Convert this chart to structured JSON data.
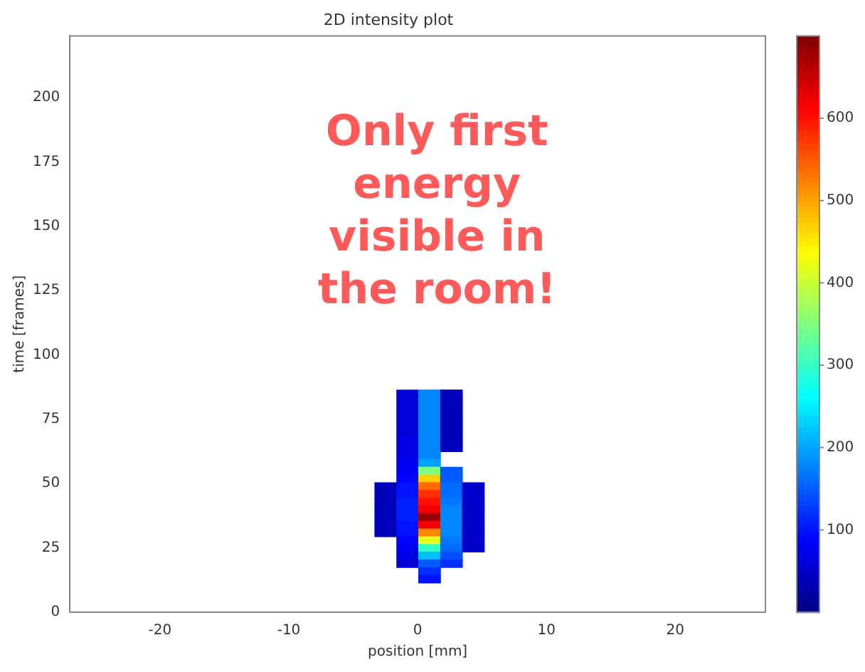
{
  "chart_data": {
    "type": "heatmap",
    "title": "2D intensity plot",
    "xlabel": "position [mm]",
    "ylabel": "time [frames]",
    "x": [
      -2.5,
      -0.8,
      0.9,
      2.6,
      4.3
    ],
    "y": [
      85,
      82,
      79,
      76,
      73,
      70,
      67,
      64,
      61,
      58,
      55,
      52,
      49,
      46,
      43,
      40,
      37,
      34,
      31,
      28,
      25,
      22,
      19,
      16,
      13
    ],
    "cells": [
      [
        null,
        60,
        180,
        40,
        null
      ],
      [
        null,
        60,
        180,
        40,
        null
      ],
      [
        null,
        60,
        180,
        40,
        null
      ],
      [
        null,
        60,
        180,
        40,
        null
      ],
      [
        null,
        60,
        180,
        40,
        null
      ],
      [
        null,
        60,
        180,
        40,
        null
      ],
      [
        null,
        70,
        180,
        40,
        null
      ],
      [
        null,
        70,
        180,
        40,
        null
      ],
      [
        null,
        70,
        180,
        null,
        null
      ],
      [
        null,
        80,
        200,
        null,
        null
      ],
      [
        null,
        80,
        350,
        150,
        null
      ],
      [
        null,
        90,
        470,
        150,
        null
      ],
      [
        40,
        100,
        540,
        160,
        50
      ],
      [
        40,
        100,
        580,
        160,
        50
      ],
      [
        40,
        110,
        600,
        170,
        50
      ],
      [
        40,
        110,
        620,
        180,
        50
      ],
      [
        40,
        110,
        680,
        180,
        50
      ],
      [
        40,
        100,
        620,
        180,
        50
      ],
      [
        40,
        100,
        520,
        180,
        50
      ],
      [
        null,
        90,
        420,
        170,
        50
      ],
      [
        null,
        80,
        300,
        160,
        50
      ],
      [
        null,
        70,
        220,
        140,
        null
      ],
      [
        null,
        60,
        150,
        120,
        null
      ],
      [
        null,
        null,
        120,
        null,
        null
      ],
      [
        null,
        null,
        100,
        null,
        null
      ]
    ],
    "xlim": [
      -27,
      27
    ],
    "xticks": [
      -20,
      -10,
      0,
      10,
      20
    ],
    "ylim": [
      0,
      224
    ],
    "yticks": [
      0,
      25,
      50,
      75,
      100,
      125,
      150,
      175,
      200
    ],
    "clim": [
      0,
      700
    ],
    "cticks": [
      100,
      200,
      300,
      400,
      500,
      600
    ],
    "annotations": [
      "Only first energy visible in the room!"
    ]
  }
}
